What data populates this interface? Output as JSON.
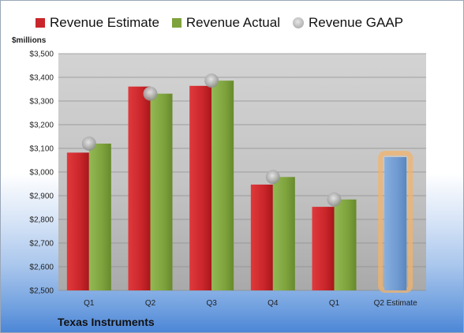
{
  "legend": {
    "estimate": "Revenue Estimate",
    "actual": "Revenue Actual",
    "gaap": "Revenue GAAP"
  },
  "unit_label": "$millions",
  "company": "Texas Instruments",
  "colors": {
    "estimate": "#c9262b",
    "actual": "#7ea33d",
    "gaap": "#a8a8a8",
    "projection": "#6f9ad0",
    "projection_glow": "#f2b36b"
  },
  "chart_data": {
    "type": "bar",
    "categories": [
      "Q1",
      "Q2",
      "Q3",
      "Q4",
      "Q1",
      "Q2 Estimate"
    ],
    "ylim": [
      2500,
      3500
    ],
    "yticks": [
      2500,
      2600,
      2700,
      2800,
      2900,
      3000,
      3100,
      3200,
      3300,
      3400,
      3500
    ],
    "ytick_labels": [
      "$2,500",
      "$2,600",
      "$2,700",
      "$2,800",
      "$2,900",
      "$3,000",
      "$3,100",
      "$3,200",
      "$3,300",
      "$3,400",
      "$3,500"
    ],
    "grid": true,
    "series": [
      {
        "name": "Revenue Estimate",
        "values": [
          3082,
          3361,
          3364,
          2947,
          2853,
          3063
        ]
      },
      {
        "name": "Revenue Actual",
        "values": [
          3120,
          3331,
          3386,
          2979,
          2884,
          null
        ]
      },
      {
        "name": "Revenue GAAP",
        "values": [
          3120,
          3331,
          3386,
          2979,
          2884,
          null
        ]
      }
    ]
  }
}
